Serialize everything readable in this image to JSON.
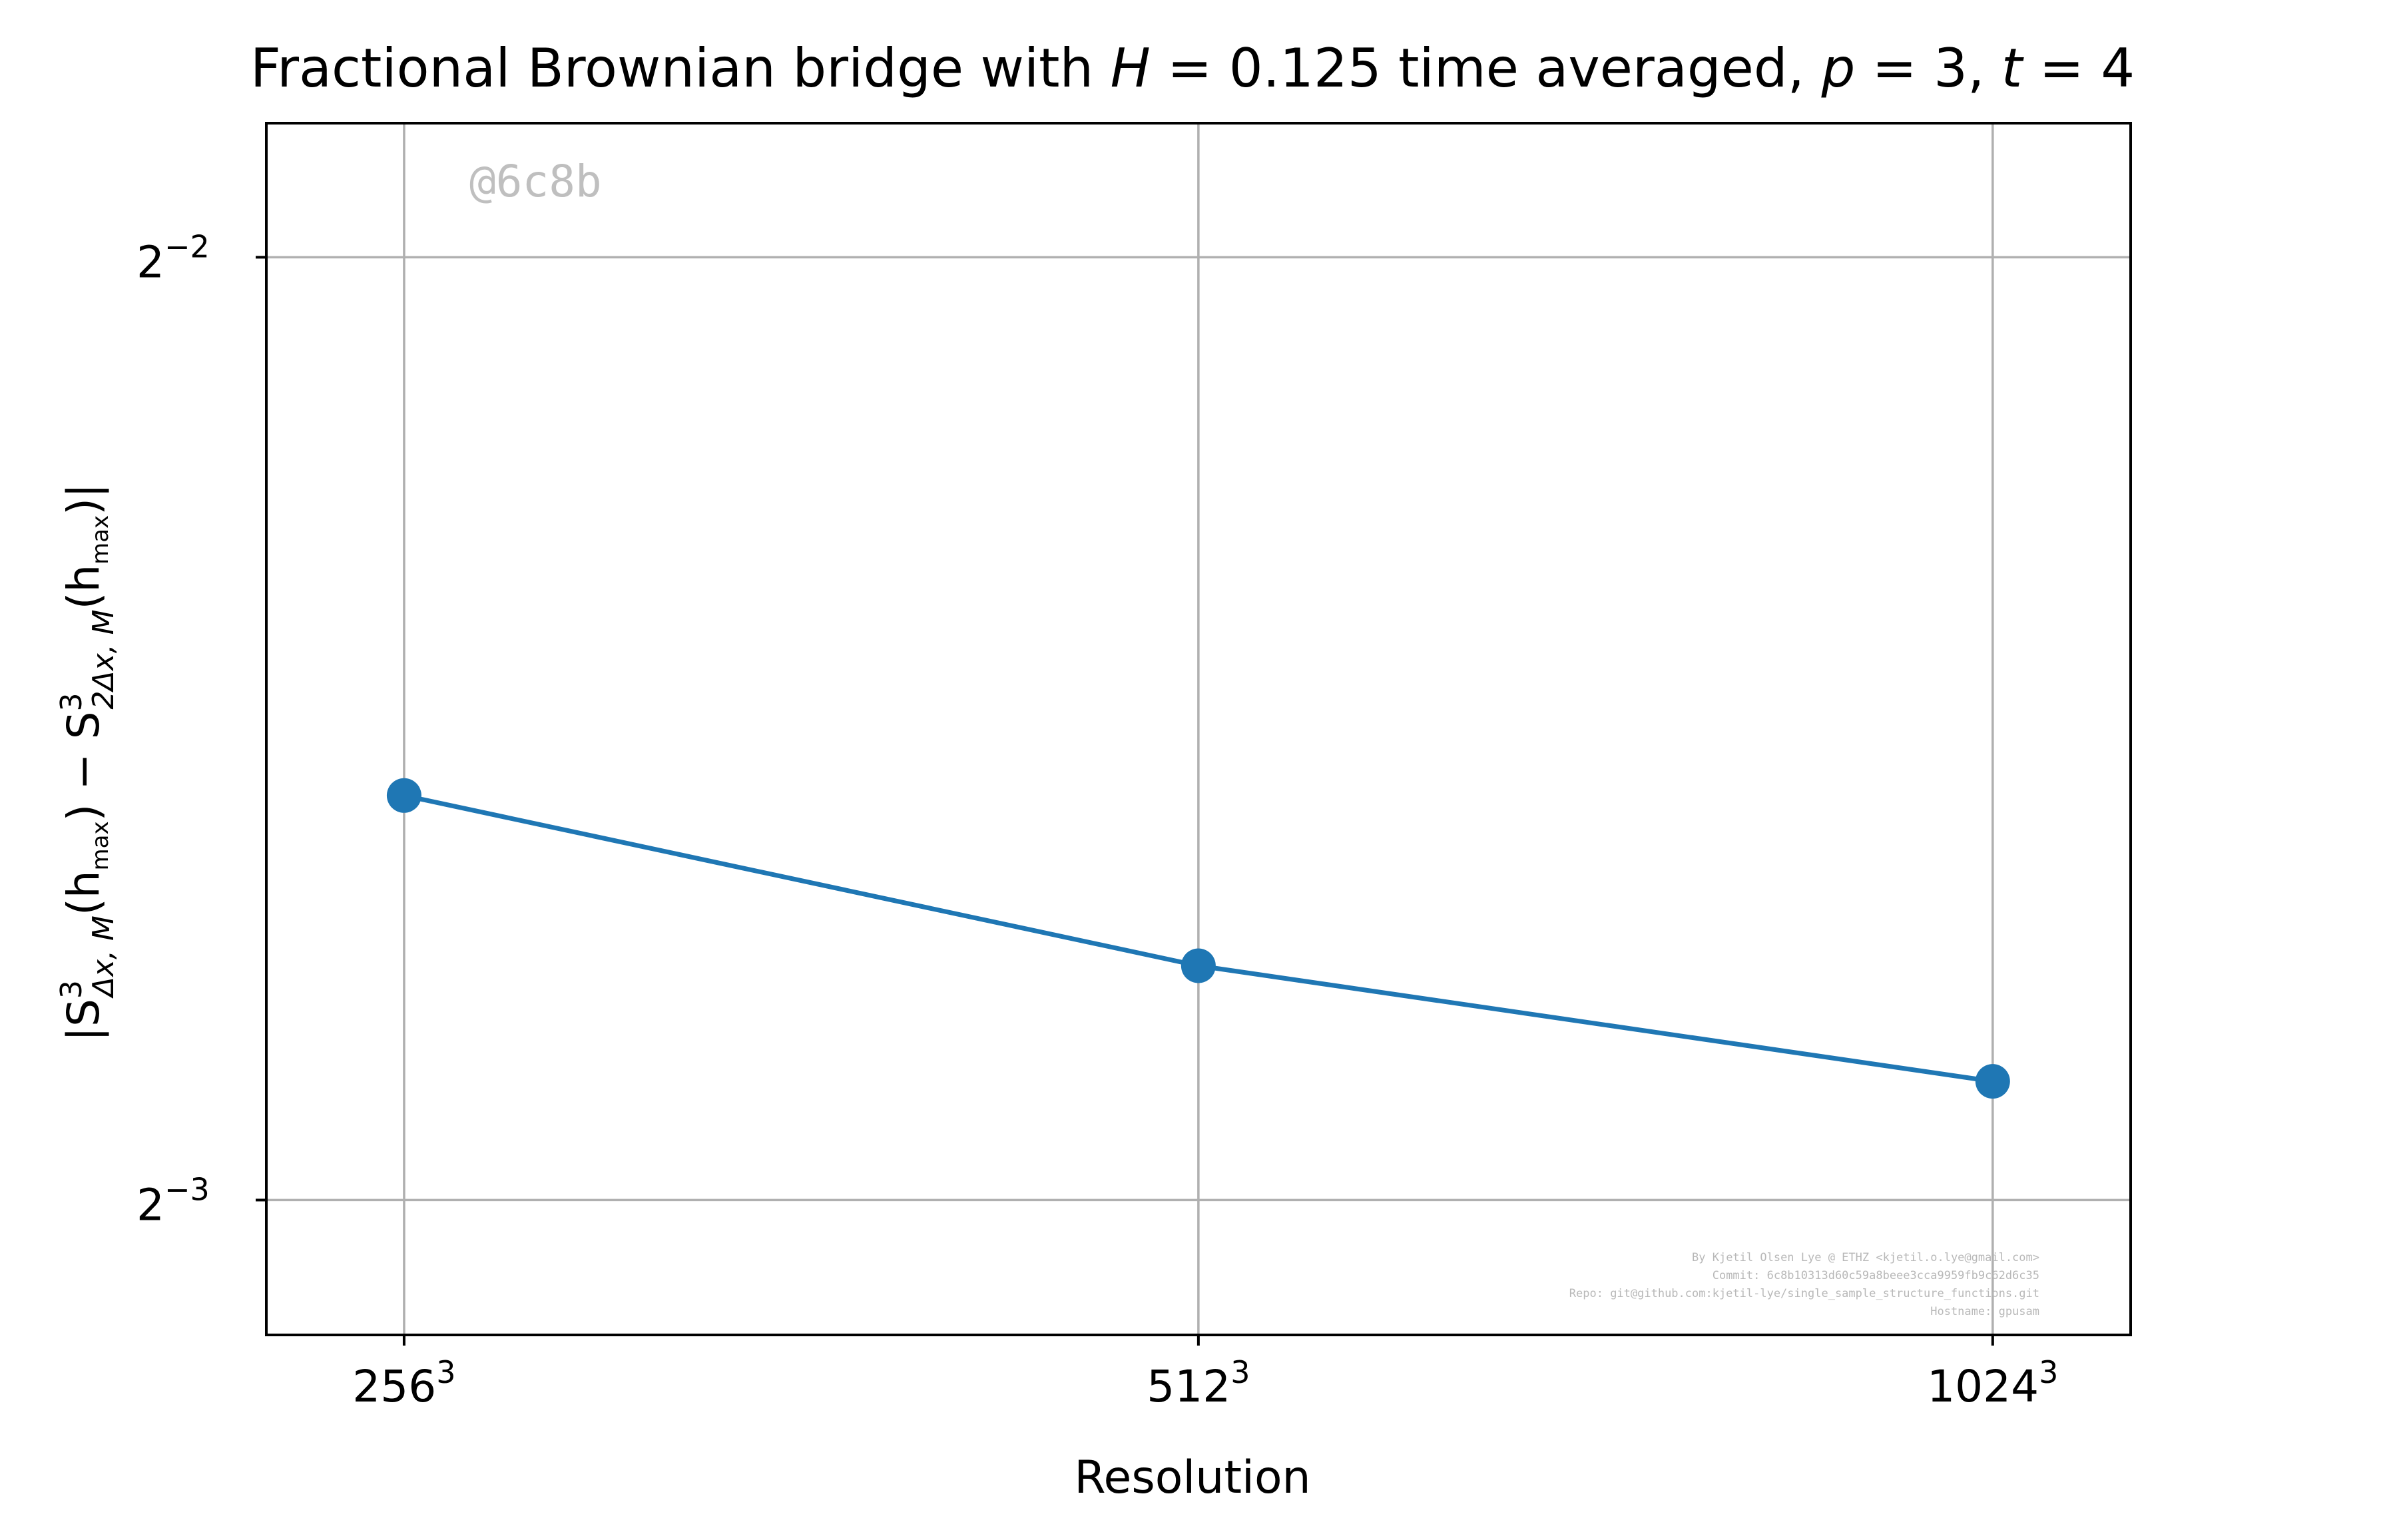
{
  "chart_data": {
    "type": "line",
    "title_parts": {
      "prefix": "Fractional Brownian bridge with ",
      "H_symbol": "H",
      "H_rest": " = 0.125 time averaged, ",
      "p_symbol": "p",
      "p_rest": " = 3, ",
      "t_symbol": "t",
      "t_rest": " = 4"
    },
    "xlabel": "Resolution",
    "ylabel_parts": {
      "open": "|S",
      "sup1": "3",
      "sub1": "Δx, M",
      "mid1": "(h",
      "sub2": "max",
      "mid2": ") − S",
      "sup3": "3",
      "sub3": "2Δx, M",
      "mid3": "(h",
      "sub4": "max",
      "close": ")|"
    },
    "x_scale": "log2",
    "y_scale": "log2",
    "categories": [
      {
        "base": "256",
        "exp": "3",
        "value": 256
      },
      {
        "base": "512",
        "exp": "3",
        "value": 512
      },
      {
        "base": "1024",
        "exp": "3",
        "value": 1024
      }
    ],
    "series": [
      {
        "color": "#1f77b4",
        "marker": "circle",
        "x": [
          256,
          512,
          1024
        ],
        "y": [
          0.1683,
          0.1485,
          0.1364
        ]
      }
    ],
    "xlim": [
      227,
      1155
    ],
    "ylim": [
      0.1132,
      0.2759
    ],
    "y_ticks": [
      {
        "base": "2",
        "exp": "−2",
        "value": 0.25
      },
      {
        "base": "2",
        "exp": "−3",
        "value": 0.125
      }
    ],
    "grid": true,
    "legend": "none"
  },
  "annotations": {
    "watermark": "@6c8b",
    "credits": [
      "By Kjetil Olsen Lye @ ETHZ <kjetil.o.lye@gmail.com>",
      "Commit: 6c8b10313d60c59a8beee3cca9959fb9c62d6c35",
      "Repo: git@github.com:kjetil-lye/single_sample_structure_functions.git",
      "Hostname: gpusam"
    ]
  }
}
